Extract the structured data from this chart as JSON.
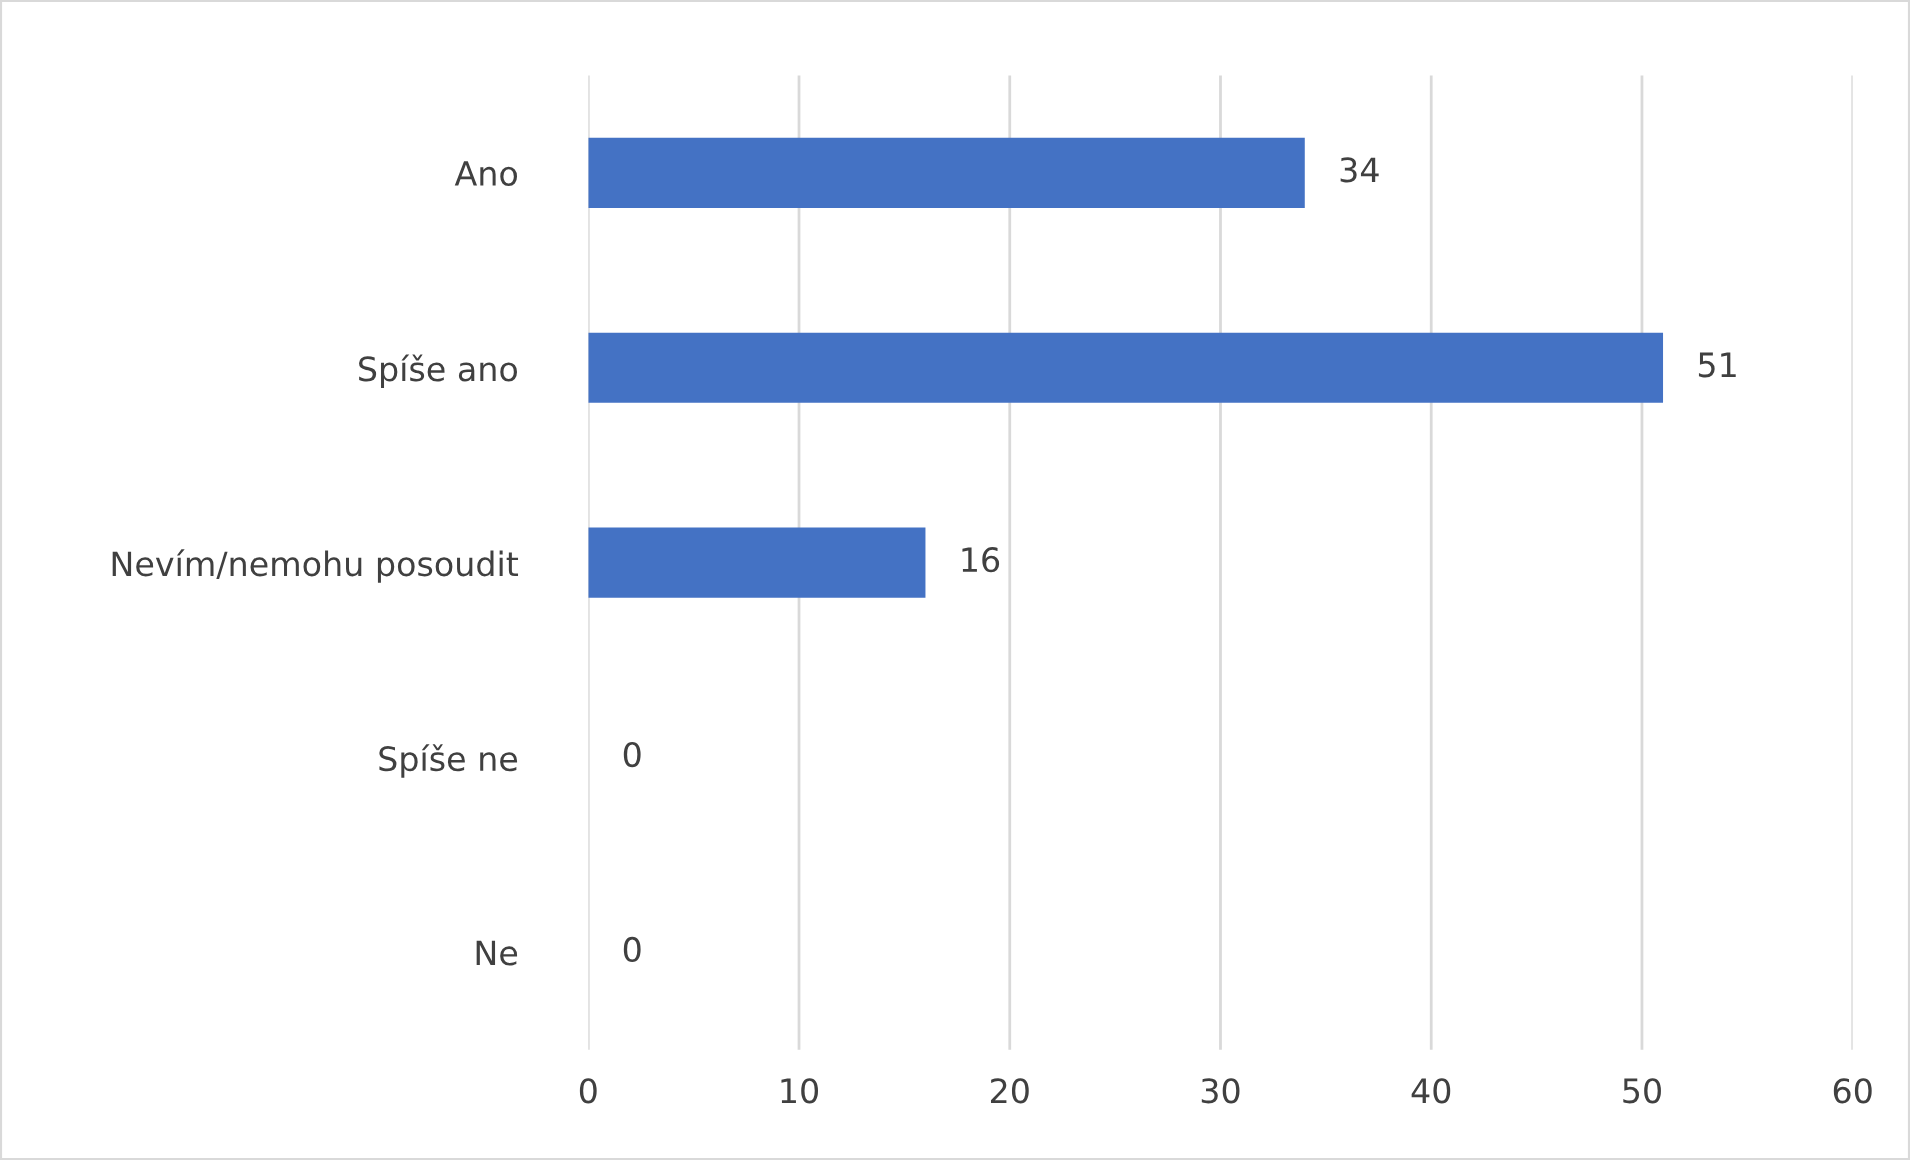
{
  "chart_data": {
    "type": "bar",
    "orientation": "horizontal",
    "categories": [
      "Ano",
      "Spíše ano",
      "Nevím/nemohu posoudit",
      "Spíše ne",
      "Ne"
    ],
    "values": [
      34,
      51,
      16,
      0,
      0
    ],
    "color": "#4472c4",
    "xlim": [
      0,
      60
    ],
    "xticks": [
      0,
      10,
      20,
      30,
      40,
      50,
      60
    ],
    "grid": "x",
    "data_labels": true
  }
}
